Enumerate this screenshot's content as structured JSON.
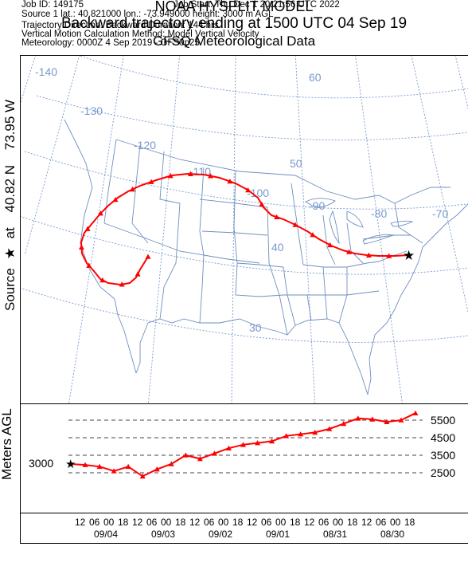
{
  "title": {
    "line1": "NOAA HYSPLIT MODEL",
    "line2": "Backward trajectory ending at 1500 UTC 04 Sep 19",
    "line3": "GFSQ Meteorological Data"
  },
  "source_label": {
    "text1": "Source",
    "star": "★",
    "text2": "at",
    "lat": "40.82 N",
    "lon": "73.95 W"
  },
  "map": {
    "longitude_labels": [
      "-140",
      "-130",
      "-120",
      "-110",
      "-100",
      "-90",
      "-80",
      "-70"
    ],
    "latitude_labels": [
      "60",
      "50",
      "40",
      "30"
    ],
    "colors": {
      "graticule": "#7799cc",
      "boundaries": "#6f8fbf",
      "trajectory": "#ff0000",
      "marker": "#000000"
    },
    "source_marker_icon": "star-icon",
    "trajectory_marker_icon": "triangle-icon"
  },
  "height_panel": {
    "axis_title": "Meters AGL",
    "start_value": "3000",
    "levels": [
      "5500",
      "4500",
      "3500",
      "2500"
    ]
  },
  "time_axis": {
    "hour_ticks": [
      "12",
      "06",
      "00",
      "18",
      "12",
      "06",
      "00",
      "18",
      "12",
      "06",
      "00",
      "18",
      "12",
      "06",
      "00",
      "18",
      "12",
      "06",
      "00",
      "18",
      "12",
      "06",
      "00",
      "18"
    ],
    "dates": [
      "09/04",
      "09/03",
      "09/02",
      "09/01",
      "08/31",
      "08/30"
    ]
  },
  "chart_data": {
    "type": "line",
    "title": "",
    "xlabel": "",
    "ylabel": "Meters AGL",
    "x_direction": "backward in time from 1500 UTC 04 Sep 2019",
    "yticks": [
      2500,
      3500,
      4500,
      5500
    ],
    "series": [
      {
        "hours_back": [
          0,
          6,
          12,
          18,
          24,
          30,
          36,
          42,
          48,
          54,
          60,
          66,
          72,
          78,
          84,
          90,
          96,
          102,
          108,
          114,
          120,
          126,
          132,
          138,
          144
        ],
        "height_m_agl": [
          3000,
          2950,
          2850,
          2600,
          2850,
          2300,
          2700,
          3000,
          3500,
          3300,
          3600,
          3900,
          4100,
          4200,
          4300,
          4600,
          4700,
          4800,
          5000,
          5300,
          5600,
          5550,
          5400,
          5500,
          5900
        ]
      }
    ]
  },
  "metadata": {
    "job_id": "Job ID: 149175",
    "job_start": "Job Start: Thu Dec  1 20:21:56 UTC 2022",
    "source": "Source 1      lat.: 40.821000     lon.: -73.949000      height: 3000 m AGL",
    "direction": "Trajectory Direction: Backward       Duration: 144 hrs",
    "vertical_motion": "Vertical Motion Calculation Method:         Model Vertical Velocity",
    "meteorology": "Meteorology: 0000Z  4 Sep 2019 - GFS0p25"
  }
}
